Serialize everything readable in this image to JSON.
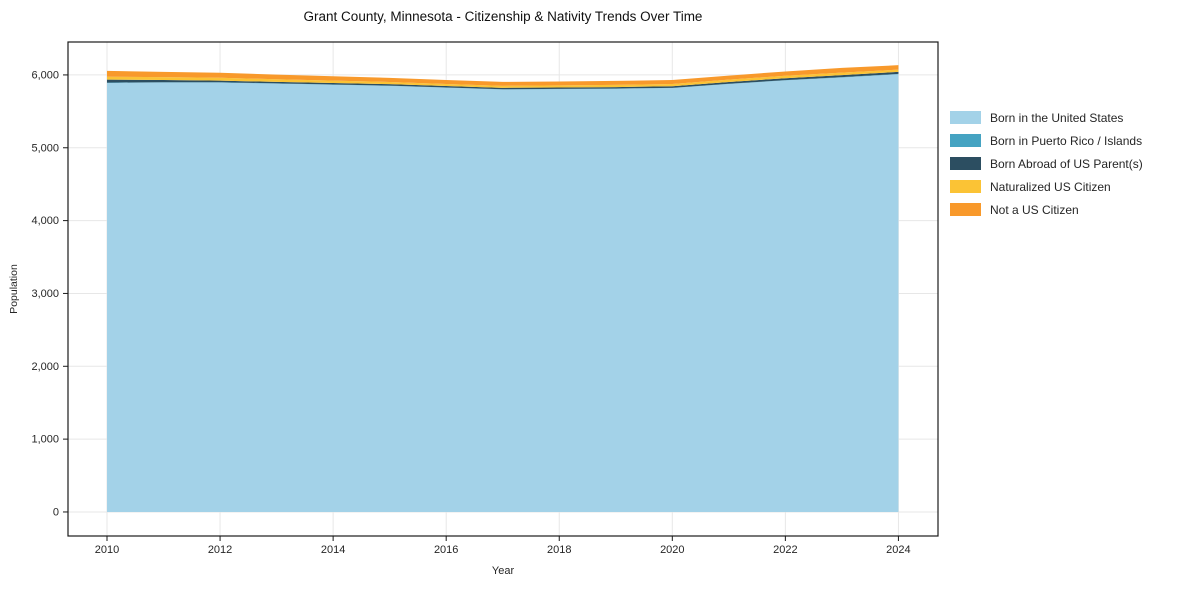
{
  "chart_data": {
    "type": "area",
    "stacked": true,
    "title": "Grant County, Minnesota - Citizenship & Nativity Trends Over Time",
    "xlabel": "Year",
    "ylabel": "Population",
    "grid": true,
    "legend_position": "right",
    "x": [
      2010,
      2011,
      2012,
      2013,
      2014,
      2015,
      2016,
      2017,
      2018,
      2019,
      2020,
      2021,
      2022,
      2023,
      2024
    ],
    "series": [
      {
        "key": "born_us",
        "name": "Born in the United States",
        "color": "#A3D2E8",
        "values": [
          5890,
          5895,
          5895,
          5880,
          5865,
          5850,
          5825,
          5800,
          5805,
          5810,
          5820,
          5875,
          5925,
          5965,
          6010
        ]
      },
      {
        "key": "born_pr",
        "name": "Born in Puerto Rico / Islands",
        "color": "#45A3C2",
        "values": [
          5,
          5,
          4,
          4,
          4,
          3,
          3,
          3,
          3,
          3,
          3,
          3,
          3,
          4,
          4
        ]
      },
      {
        "key": "born_abroad",
        "name": "Born Abroad of US Parent(s)",
        "color": "#2C4E61",
        "values": [
          40,
          30,
          22,
          20,
          20,
          20,
          20,
          20,
          20,
          20,
          22,
          25,
          27,
          28,
          28
        ]
      },
      {
        "key": "naturalized",
        "name": "Naturalized US Citizen",
        "color": "#FBC335",
        "values": [
          40,
          40,
          40,
          36,
          33,
          30,
          28,
          27,
          28,
          30,
          30,
          32,
          34,
          35,
          30
        ]
      },
      {
        "key": "not_citizen",
        "name": "Not a US Citizen",
        "color": "#F8992B",
        "values": [
          80,
          72,
          68,
          64,
          60,
          57,
          55,
          54,
          54,
          55,
          55,
          56,
          58,
          65,
          62
        ]
      }
    ],
    "totals": [
      6055,
      6042,
      6029,
      6004,
      5982,
      5960,
      5931,
      5904,
      5910,
      5918,
      5930,
      5991,
      6047,
      6097,
      6134
    ],
    "xticks": {
      "values": [
        2010,
        2012,
        2014,
        2016,
        2018,
        2020,
        2022,
        2024
      ],
      "labels": [
        "2010",
        "2012",
        "2014",
        "2016",
        "2018",
        "2020",
        "2022",
        "2024"
      ]
    },
    "yticks": {
      "values": [
        0,
        1000,
        2000,
        3000,
        4000,
        5000,
        6000
      ],
      "labels": [
        "0",
        "1,000",
        "2,000",
        "3,000",
        "4,000",
        "5,000",
        "6,000"
      ]
    },
    "xlim": [
      2009.31,
      2024.7
    ],
    "ylim": [
      -330,
      6452
    ]
  }
}
